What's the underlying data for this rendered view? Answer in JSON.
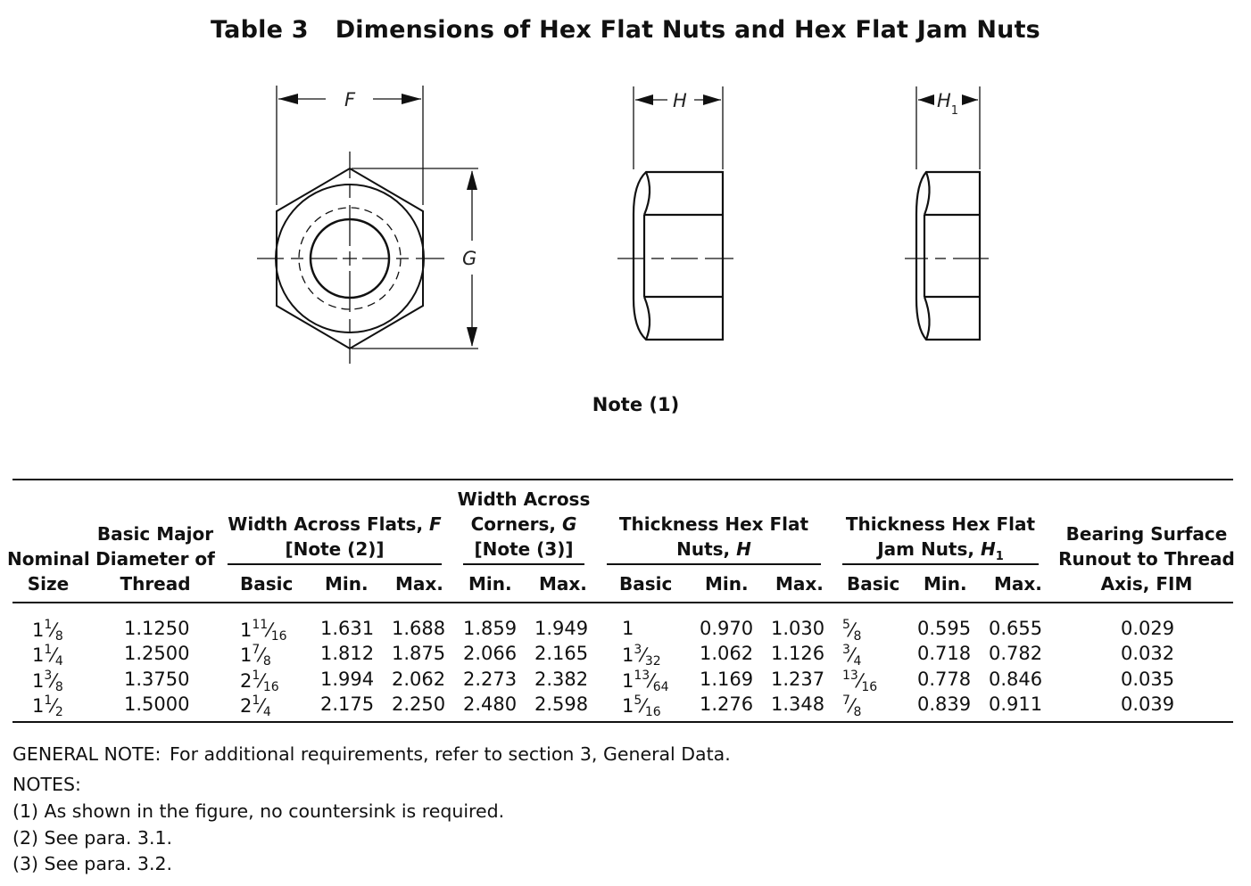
{
  "title": {
    "number": "Table 3",
    "text": "Dimensions of Hex Flat Nuts and Hex Flat Jam Nuts"
  },
  "figure": {
    "label_f": "F",
    "label_g": "G",
    "label_h": "H",
    "label_h1": "H",
    "label_h1_sub": "1",
    "note": "Note (1)"
  },
  "table": {
    "headers": {
      "nominal_size": [
        "Nominal",
        "Size"
      ],
      "basic_major": [
        "Basic Major",
        "Diameter of",
        "Thread"
      ],
      "width_flats": [
        "Width Across Flats, F",
        "[Note (2)]"
      ],
      "width_corners": [
        "Width Across",
        "Corners, G",
        "[Note (3)]"
      ],
      "thickness_hex": [
        "Thickness Hex Flat",
        "Nuts, H"
      ],
      "thickness_jam": [
        "Thickness Hex Flat",
        "Jam Nuts, H",
        "1"
      ],
      "bearing": [
        "Bearing Surface",
        "Runout to Thread",
        "Axis, FIM"
      ],
      "sub": {
        "f_basic": "Basic",
        "f_min": "Min.",
        "f_max": "Max.",
        "g_min": "Min.",
        "g_max": "Max.",
        "h_basic": "Basic",
        "h_min": "Min.",
        "h_max": "Max.",
        "h1_basic": "Basic",
        "h1_min": "Min.",
        "h1_max": "Max."
      }
    },
    "rows": [
      {
        "nominal": {
          "whole": "1",
          "num": "1",
          "den": "8"
        },
        "basic_major": "1.1250",
        "f_basic": {
          "whole": "1",
          "num": "11",
          "den": "16"
        },
        "f_min": "1.631",
        "f_max": "1.688",
        "g_min": "1.859",
        "g_max": "1.949",
        "h_basic": {
          "whole": "1",
          "num": "",
          "den": ""
        },
        "h_min": "0.970",
        "h_max": "1.030",
        "h1_basic": {
          "whole": "",
          "num": "5",
          "den": "8"
        },
        "h1_min": "0.595",
        "h1_max": "0.655",
        "bearing": "0.029"
      },
      {
        "nominal": {
          "whole": "1",
          "num": "1",
          "den": "4"
        },
        "basic_major": "1.2500",
        "f_basic": {
          "whole": "1",
          "num": "7",
          "den": "8"
        },
        "f_min": "1.812",
        "f_max": "1.875",
        "g_min": "2.066",
        "g_max": "2.165",
        "h_basic": {
          "whole": "1",
          "num": "3",
          "den": "32"
        },
        "h_min": "1.062",
        "h_max": "1.126",
        "h1_basic": {
          "whole": "",
          "num": "3",
          "den": "4"
        },
        "h1_min": "0.718",
        "h1_max": "0.782",
        "bearing": "0.032"
      },
      {
        "nominal": {
          "whole": "1",
          "num": "3",
          "den": "8"
        },
        "basic_major": "1.3750",
        "f_basic": {
          "whole": "2",
          "num": "1",
          "den": "16"
        },
        "f_min": "1.994",
        "f_max": "2.062",
        "g_min": "2.273",
        "g_max": "2.382",
        "h_basic": {
          "whole": "1",
          "num": "13",
          "den": "64"
        },
        "h_min": "1.169",
        "h_max": "1.237",
        "h1_basic": {
          "whole": "",
          "num": "13",
          "den": "16"
        },
        "h1_min": "0.778",
        "h1_max": "0.846",
        "bearing": "0.035"
      },
      {
        "nominal": {
          "whole": "1",
          "num": "1",
          "den": "2"
        },
        "basic_major": "1.5000",
        "f_basic": {
          "whole": "2",
          "num": "1",
          "den": "4"
        },
        "f_min": "2.175",
        "f_max": "2.250",
        "g_min": "2.480",
        "g_max": "2.598",
        "h_basic": {
          "whole": "1",
          "num": "5",
          "den": "16"
        },
        "h_min": "1.276",
        "h_max": "1.348",
        "h1_basic": {
          "whole": "",
          "num": "7",
          "den": "8"
        },
        "h1_min": "0.839",
        "h1_max": "0.911",
        "bearing": "0.039"
      }
    ]
  },
  "notes": {
    "general_label": "GENERAL NOTE:",
    "general_text": "For additional requirements, refer to section 3, General Data.",
    "notes_label": "NOTES:",
    "items": [
      "(1)  As shown in the figure, no countersink is required.",
      "(2)  See para. 3.1.",
      "(3)  See para. 3.2."
    ]
  }
}
